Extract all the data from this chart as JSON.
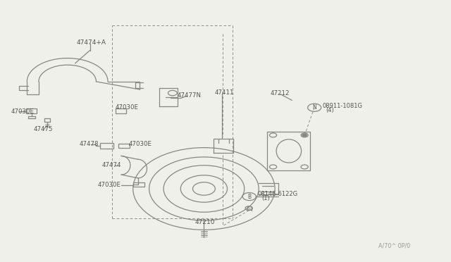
{
  "bg_color": "#f0f0eb",
  "line_color": "#888880",
  "text_color": "#555550",
  "fig_width": 6.4,
  "fig_height": 3.72,
  "dpi": 100,
  "ref_color": "#999990",
  "parts": {
    "47474A": "47474+A",
    "47030E": "47030E",
    "47475": "47475",
    "47477N": "47477N",
    "47478": "47478",
    "47474": "47474",
    "47411": "47411",
    "47212": "47212",
    "N_num": "08911-1081G",
    "N_qty": "(4)",
    "B_num": "08146-6122G",
    "B_qty": "(1)",
    "47210": "47210",
    "ref": "A/70^ 0P/0"
  }
}
